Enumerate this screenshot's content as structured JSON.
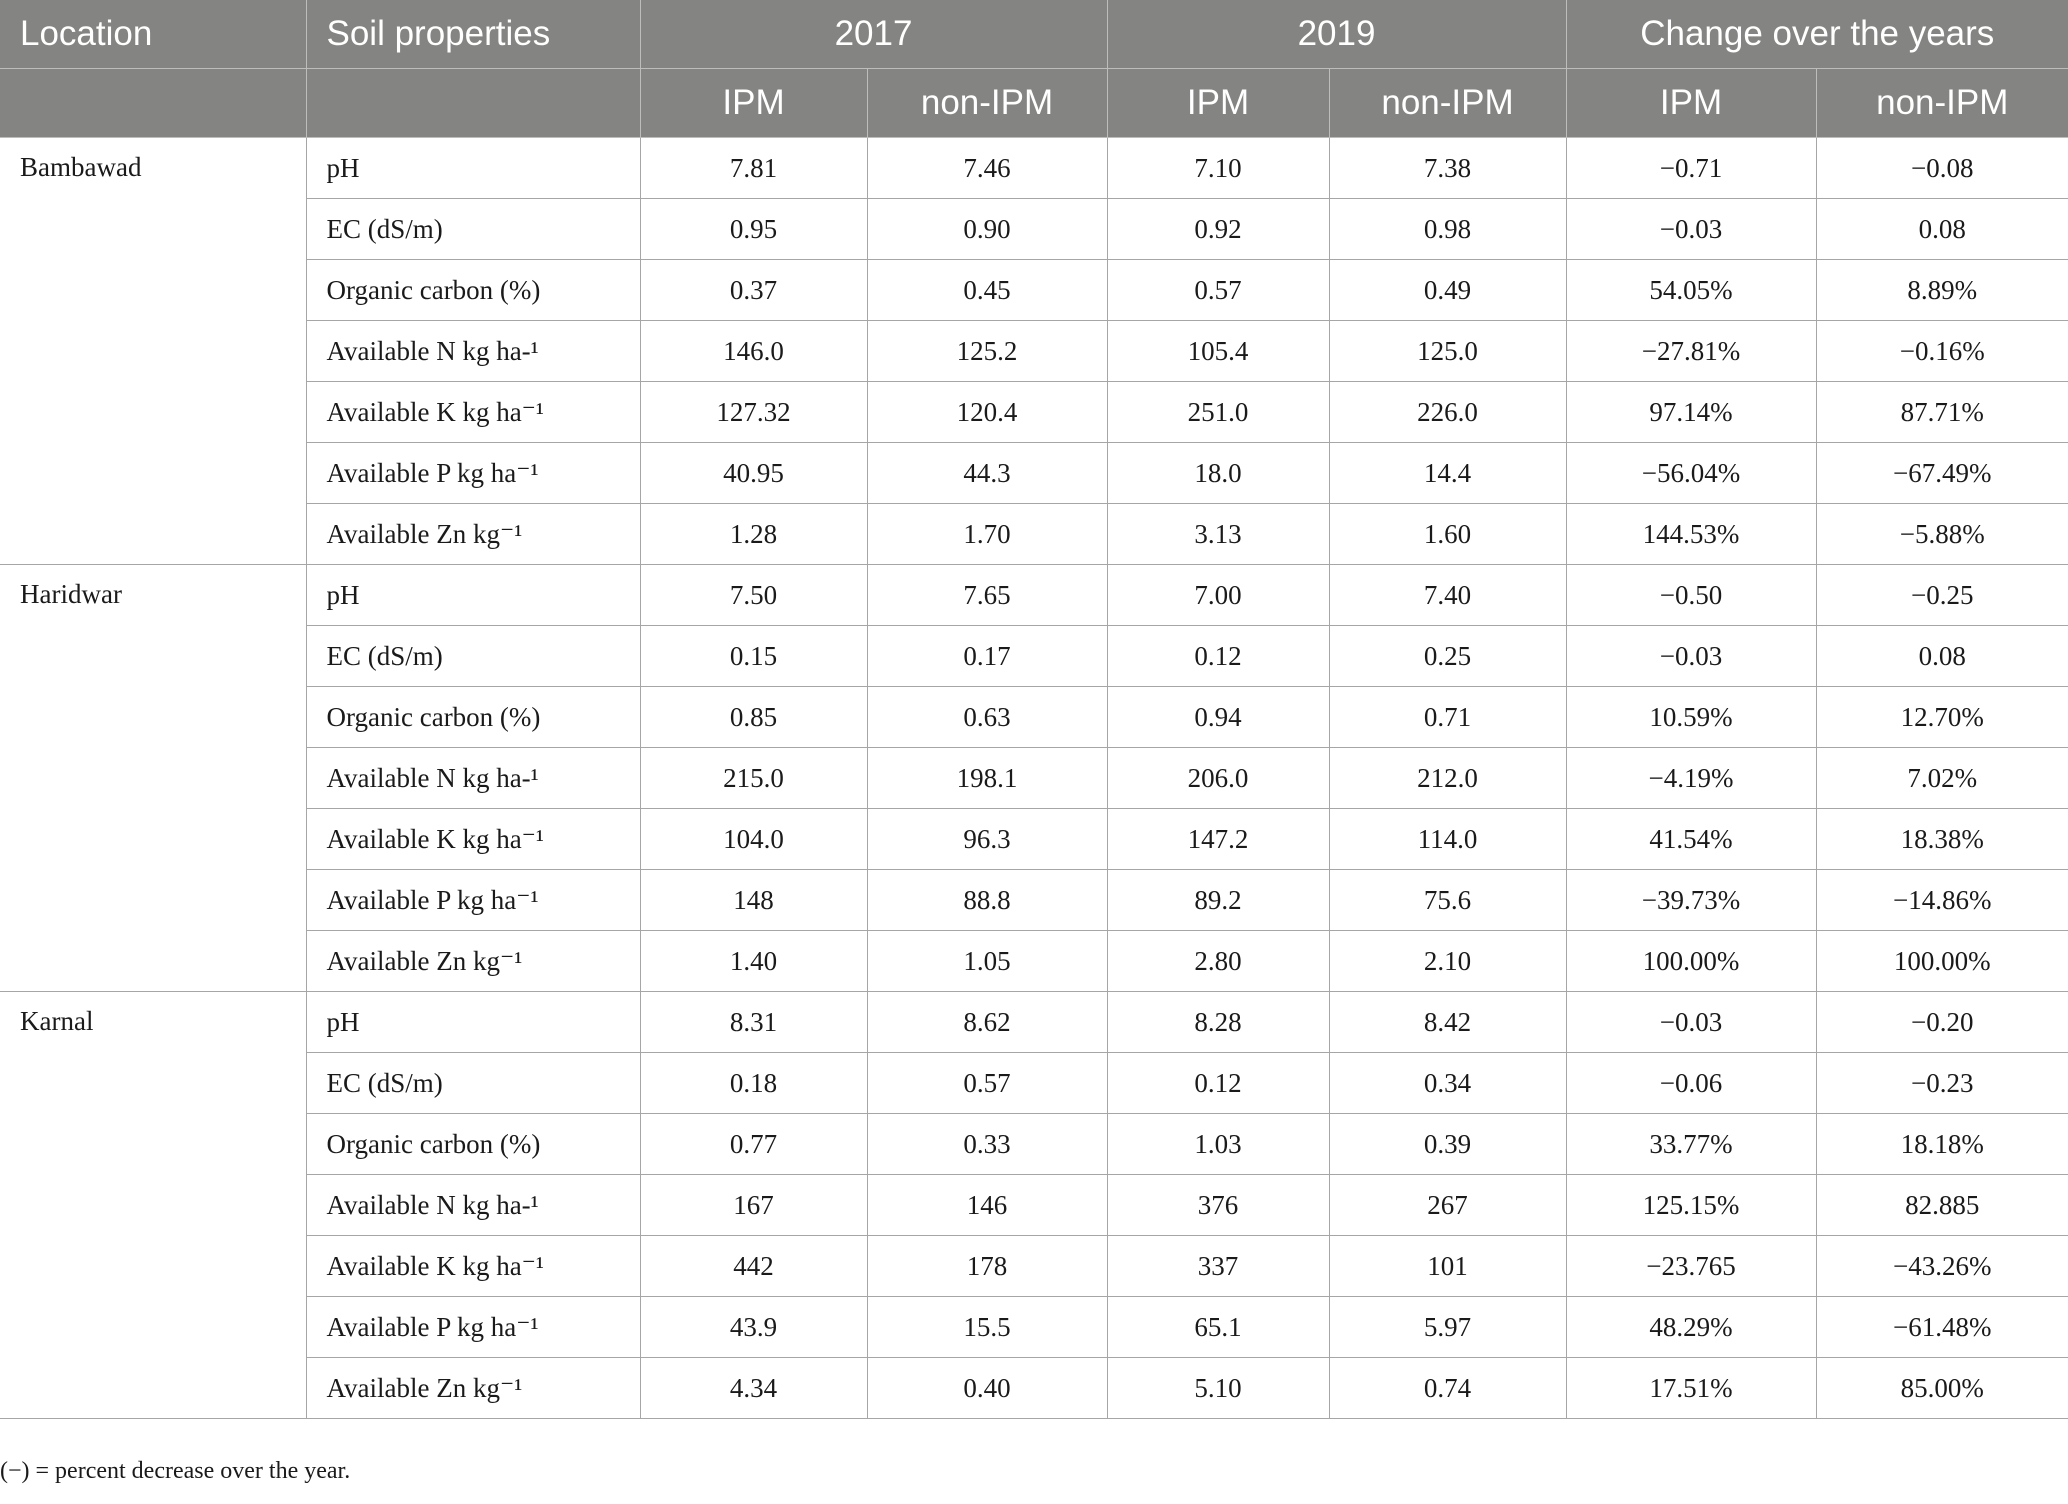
{
  "header": {
    "location": "Location",
    "soil_properties": "Soil properties",
    "year1": "2017",
    "year2": "2019",
    "change": "Change over the years",
    "ipm": "IPM",
    "non_ipm": "non-IPM"
  },
  "groups": [
    {
      "location": "Bambawad",
      "rows": [
        {
          "property": "pH",
          "ipm_2017": "7.81",
          "non_2017": "7.46",
          "ipm_2019": "7.10",
          "non_2019": "7.38",
          "ipm_change": "−0.71",
          "non_change": "−0.08"
        },
        {
          "property": "EC (dS/m)",
          "ipm_2017": "0.95",
          "non_2017": "0.90",
          "ipm_2019": "0.92",
          "non_2019": "0.98",
          "ipm_change": "−0.03",
          "non_change": "0.08"
        },
        {
          "property": "Organic carbon (%)",
          "ipm_2017": "0.37",
          "non_2017": "0.45",
          "ipm_2019": "0.57",
          "non_2019": "0.49",
          "ipm_change": "54.05%",
          "non_change": "8.89%"
        },
        {
          "property": "Available N kg ha-¹",
          "ipm_2017": "146.0",
          "non_2017": "125.2",
          "ipm_2019": "105.4",
          "non_2019": "125.0",
          "ipm_change": "−27.81%",
          "non_change": "−0.16%"
        },
        {
          "property": "Available K kg ha⁻¹",
          "ipm_2017": "127.32",
          "non_2017": "120.4",
          "ipm_2019": "251.0",
          "non_2019": "226.0",
          "ipm_change": "97.14%",
          "non_change": "87.71%"
        },
        {
          "property": "Available P kg ha⁻¹",
          "ipm_2017": "40.95",
          "non_2017": "44.3",
          "ipm_2019": "18.0",
          "non_2019": "14.4",
          "ipm_change": "−56.04%",
          "non_change": "−67.49%"
        },
        {
          "property": "Available Zn kg⁻¹",
          "ipm_2017": "1.28",
          "non_2017": "1.70",
          "ipm_2019": "3.13",
          "non_2019": "1.60",
          "ipm_change": "144.53%",
          "non_change": "−5.88%"
        }
      ]
    },
    {
      "location": "Haridwar",
      "rows": [
        {
          "property": "pH",
          "ipm_2017": "7.50",
          "non_2017": "7.65",
          "ipm_2019": "7.00",
          "non_2019": "7.40",
          "ipm_change": "−0.50",
          "non_change": "−0.25"
        },
        {
          "property": "EC (dS/m)",
          "ipm_2017": "0.15",
          "non_2017": "0.17",
          "ipm_2019": "0.12",
          "non_2019": "0.25",
          "ipm_change": "−0.03",
          "non_change": "0.08"
        },
        {
          "property": "Organic carbon (%)",
          "ipm_2017": "0.85",
          "non_2017": "0.63",
          "ipm_2019": "0.94",
          "non_2019": "0.71",
          "ipm_change": "10.59%",
          "non_change": "12.70%"
        },
        {
          "property": "Available N kg ha-¹",
          "ipm_2017": "215.0",
          "non_2017": "198.1",
          "ipm_2019": "206.0",
          "non_2019": "212.0",
          "ipm_change": "−4.19%",
          "non_change": "7.02%"
        },
        {
          "property": "Available K kg ha⁻¹",
          "ipm_2017": "104.0",
          "non_2017": "96.3",
          "ipm_2019": "147.2",
          "non_2019": "114.0",
          "ipm_change": "41.54%",
          "non_change": "18.38%"
        },
        {
          "property": "Available P kg ha⁻¹",
          "ipm_2017": "148",
          "non_2017": "88.8",
          "ipm_2019": "89.2",
          "non_2019": "75.6",
          "ipm_change": "−39.73%",
          "non_change": "−14.86%"
        },
        {
          "property": "Available Zn kg⁻¹",
          "ipm_2017": "1.40",
          "non_2017": "1.05",
          "ipm_2019": "2.80",
          "non_2019": "2.10",
          "ipm_change": "100.00%",
          "non_change": "100.00%"
        }
      ]
    },
    {
      "location": "Karnal",
      "rows": [
        {
          "property": "pH",
          "ipm_2017": "8.31",
          "non_2017": "8.62",
          "ipm_2019": "8.28",
          "non_2019": "8.42",
          "ipm_change": "−0.03",
          "non_change": "−0.20"
        },
        {
          "property": "EC (dS/m)",
          "ipm_2017": "0.18",
          "non_2017": "0.57",
          "ipm_2019": "0.12",
          "non_2019": "0.34",
          "ipm_change": "−0.06",
          "non_change": "−0.23"
        },
        {
          "property": "Organic carbon (%)",
          "ipm_2017": "0.77",
          "non_2017": "0.33",
          "ipm_2019": "1.03",
          "non_2019": "0.39",
          "ipm_change": "33.77%",
          "non_change": "18.18%"
        },
        {
          "property": "Available N kg ha-¹",
          "ipm_2017": "167",
          "non_2017": "146",
          "ipm_2019": "376",
          "non_2019": "267",
          "ipm_change": "125.15%",
          "non_change": "82.885"
        },
        {
          "property": "Available K kg ha⁻¹",
          "ipm_2017": "442",
          "non_2017": "178",
          "ipm_2019": "337",
          "non_2019": "101",
          "ipm_change": "−23.765",
          "non_change": "−43.26%"
        },
        {
          "property": "Available P kg ha⁻¹",
          "ipm_2017": "43.9",
          "non_2017": "15.5",
          "ipm_2019": "65.1",
          "non_2019": "5.97",
          "ipm_change": "48.29%",
          "non_change": "−61.48%"
        },
        {
          "property": "Available Zn kg⁻¹",
          "ipm_2017": "4.34",
          "non_2017": "0.40",
          "ipm_2019": "5.10",
          "non_2019": "0.74",
          "ipm_change": "17.51%",
          "non_change": "85.00%"
        }
      ]
    }
  ],
  "footnote": "(−) = percent decrease over the year."
}
